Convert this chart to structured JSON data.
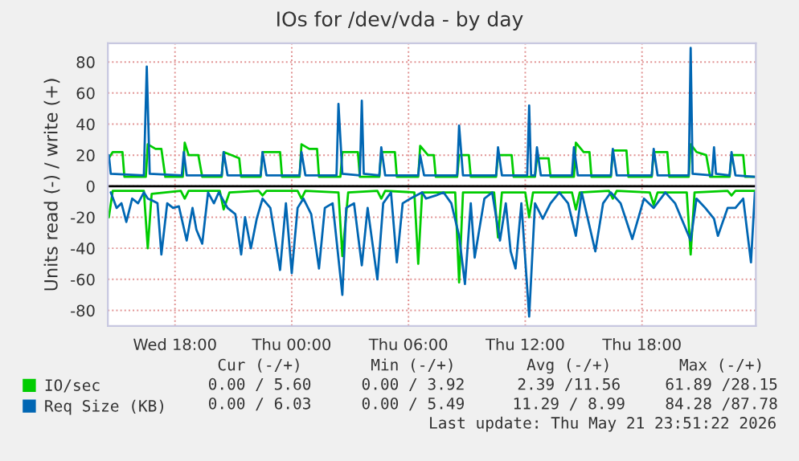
{
  "chart_data": {
    "type": "line",
    "title": "IOs for /dev/vda - by day",
    "ylabel": "Units read (-) / write (+)",
    "xlim": [
      "2026-05-20T14:33",
      "2026-05-21T23:51"
    ],
    "xticks": [
      {
        "value": "2026-05-20T18:00",
        "label": "Wed 18:00"
      },
      {
        "value": "2026-05-21T00:00",
        "label": "Thu 00:00"
      },
      {
        "value": "2026-05-21T06:00",
        "label": "Thu 06:00"
      },
      {
        "value": "2026-05-21T12:00",
        "label": "Thu 12:00"
      },
      {
        "value": "2026-05-21T18:00",
        "label": "Thu 18:00"
      }
    ],
    "ylim": [
      -90,
      92
    ],
    "yticks": [
      -80,
      -60,
      -40,
      -20,
      0,
      20,
      40,
      60,
      80
    ],
    "grid": true,
    "legend": "bottom left",
    "ref_lines": [
      {
        "axis": "y",
        "value": 0,
        "label": null,
        "color": "#000000"
      }
    ],
    "series": [
      {
        "name": "IO/sec",
        "color": "#00cc00",
        "x": [
          "2026-05-20T14:36",
          "2026-05-20T14:48",
          "2026-05-20T15:18",
          "2026-05-20T15:24",
          "2026-05-20T16:30",
          "2026-05-20T16:36",
          "2026-05-20T17:00",
          "2026-05-20T17:18",
          "2026-05-20T17:30",
          "2026-05-20T18:24",
          "2026-05-20T18:30",
          "2026-05-20T18:42",
          "2026-05-20T19:12",
          "2026-05-20T19:24",
          "2026-05-20T20:24",
          "2026-05-20T20:30",
          "2026-05-20T21:18",
          "2026-05-20T21:24",
          "2026-05-20T22:24",
          "2026-05-20T22:30",
          "2026-05-20T23:24",
          "2026-05-20T23:30",
          "2026-05-21T00:24",
          "2026-05-21T00:30",
          "2026-05-21T00:54",
          "2026-05-21T01:18",
          "2026-05-21T01:24",
          "2026-05-21T02:30",
          "2026-05-21T02:36",
          "2026-05-21T03:24",
          "2026-05-21T03:30",
          "2026-05-21T04:30",
          "2026-05-21T04:36",
          "2026-05-21T05:18",
          "2026-05-21T05:24",
          "2026-05-21T06:30",
          "2026-05-21T06:36",
          "2026-05-21T07:00",
          "2026-05-21T07:18",
          "2026-05-21T07:24",
          "2026-05-21T08:30",
          "2026-05-21T08:36",
          "2026-05-21T09:06",
          "2026-05-21T09:12",
          "2026-05-21T10:30",
          "2026-05-21T10:36",
          "2026-05-21T11:18",
          "2026-05-21T11:24",
          "2026-05-21T12:30",
          "2026-05-21T12:36",
          "2026-05-21T13:12",
          "2026-05-21T13:18",
          "2026-05-21T14:30",
          "2026-05-21T14:36",
          "2026-05-21T15:00",
          "2026-05-21T15:18",
          "2026-05-21T15:24",
          "2026-05-21T16:24",
          "2026-05-21T16:30",
          "2026-05-21T17:12",
          "2026-05-21T17:18",
          "2026-05-21T18:30",
          "2026-05-21T18:36",
          "2026-05-21T19:18",
          "2026-05-21T19:24",
          "2026-05-21T20:24",
          "2026-05-21T20:30",
          "2026-05-21T20:48",
          "2026-05-21T21:18",
          "2026-05-21T21:30",
          "2026-05-21T22:30",
          "2026-05-21T22:36",
          "2026-05-21T23:12",
          "2026-05-21T23:18",
          "2026-05-21T23:48"
        ],
        "values": [
          18,
          22,
          22,
          6,
          6,
          27,
          24,
          24,
          6,
          6,
          28,
          20,
          20,
          6,
          6,
          22,
          18,
          6,
          6,
          22,
          22,
          6,
          6,
          27,
          24,
          24,
          6,
          6,
          22,
          22,
          6,
          6,
          22,
          22,
          6,
          6,
          26,
          20,
          20,
          6,
          6,
          20,
          20,
          6,
          6,
          20,
          20,
          6,
          6,
          18,
          18,
          6,
          6,
          28,
          22,
          22,
          6,
          6,
          23,
          23,
          6,
          6,
          22,
          22,
          6,
          6,
          27,
          22,
          20,
          6,
          6,
          20,
          20,
          6,
          6
        ]
      },
      {
        "color": "#00cc00",
        "x": [
          "2026-05-20T14:36",
          "2026-05-20T14:48",
          "2026-05-20T16:24",
          "2026-05-20T16:36",
          "2026-05-20T16:48",
          "2026-05-20T18:18",
          "2026-05-20T18:30",
          "2026-05-20T18:42",
          "2026-05-20T20:18",
          "2026-05-20T20:30",
          "2026-05-20T20:48",
          "2026-05-20T22:18",
          "2026-05-20T22:30",
          "2026-05-20T22:42",
          "2026-05-21T00:18",
          "2026-05-21T00:30",
          "2026-05-21T00:42",
          "2026-05-21T02:24",
          "2026-05-21T02:36",
          "2026-05-21T02:54",
          "2026-05-21T04:24",
          "2026-05-21T04:36",
          "2026-05-21T04:48",
          "2026-05-21T06:18",
          "2026-05-21T06:30",
          "2026-05-21T06:42",
          "2026-05-21T08:24",
          "2026-05-21T08:36",
          "2026-05-21T08:48",
          "2026-05-21T10:24",
          "2026-05-21T10:36",
          "2026-05-21T10:48",
          "2026-05-21T12:00",
          "2026-05-21T12:12",
          "2026-05-21T12:24",
          "2026-05-21T14:24",
          "2026-05-21T14:36",
          "2026-05-21T14:48",
          "2026-05-21T16:18",
          "2026-05-21T16:30",
          "2026-05-21T16:42",
          "2026-05-21T18:24",
          "2026-05-21T18:36",
          "2026-05-21T18:48",
          "2026-05-21T20:18",
          "2026-05-21T20:30",
          "2026-05-21T20:42",
          "2026-05-21T22:24",
          "2026-05-21T22:36",
          "2026-05-21T22:48",
          "2026-05-21T23:48"
        ],
        "values": [
          -20,
          -3,
          -3,
          -40,
          -5,
          -3,
          -8,
          -3,
          -3,
          -15,
          -4,
          -3,
          -6,
          -3,
          -3,
          -8,
          -3,
          -4,
          -45,
          -4,
          -3,
          -8,
          -3,
          -4,
          -50,
          -4,
          -4,
          -62,
          -4,
          -4,
          -33,
          -4,
          -4,
          -20,
          -4,
          -4,
          -15,
          -4,
          -3,
          -8,
          -3,
          -4,
          -12,
          -4,
          -4,
          -44,
          -4,
          -3,
          -6,
          -3,
          -3
        ]
      },
      {
        "name": "Req Size (KB)",
        "color": "#0066b3",
        "x": [
          "2026-05-20T14:36",
          "2026-05-20T14:42",
          "2026-05-20T16:24",
          "2026-05-20T16:33",
          "2026-05-20T16:42",
          "2026-05-20T18:21",
          "2026-05-20T18:27",
          "2026-05-20T18:36",
          "2026-05-20T20:24",
          "2026-05-20T20:30",
          "2026-05-20T20:42",
          "2026-05-20T22:24",
          "2026-05-20T22:30",
          "2026-05-20T22:42",
          "2026-05-21T00:24",
          "2026-05-21T00:30",
          "2026-05-21T00:42",
          "2026-05-21T02:18",
          "2026-05-21T02:24",
          "2026-05-21T02:36",
          "2026-05-21T03:30",
          "2026-05-21T03:36",
          "2026-05-21T03:42",
          "2026-05-21T04:30",
          "2026-05-21T04:36",
          "2026-05-21T04:48",
          "2026-05-21T06:30",
          "2026-05-21T06:36",
          "2026-05-21T06:48",
          "2026-05-21T08:30",
          "2026-05-21T08:36",
          "2026-05-21T08:48",
          "2026-05-21T10:30",
          "2026-05-21T10:36",
          "2026-05-21T10:48",
          "2026-05-21T12:06",
          "2026-05-21T12:12",
          "2026-05-21T12:18",
          "2026-05-21T12:30",
          "2026-05-21T12:36",
          "2026-05-21T12:48",
          "2026-05-21T14:24",
          "2026-05-21T14:30",
          "2026-05-21T14:42",
          "2026-05-21T16:24",
          "2026-05-21T16:30",
          "2026-05-21T16:42",
          "2026-05-21T18:30",
          "2026-05-21T18:36",
          "2026-05-21T18:48",
          "2026-05-21T20:24",
          "2026-05-21T20:30",
          "2026-05-21T20:36",
          "2026-05-21T21:36",
          "2026-05-21T21:42",
          "2026-05-21T21:48",
          "2026-05-21T22:30",
          "2026-05-21T22:36",
          "2026-05-21T22:48",
          "2026-05-21T23:48"
        ],
        "values": [
          20,
          8,
          7,
          77,
          8,
          7,
          22,
          7,
          7,
          22,
          7,
          7,
          22,
          7,
          7,
          22,
          7,
          7,
          53,
          8,
          7,
          55,
          8,
          7,
          25,
          7,
          7,
          20,
          7,
          7,
          39,
          7,
          7,
          25,
          7,
          7,
          52,
          7,
          7,
          25,
          7,
          7,
          25,
          7,
          7,
          24,
          7,
          7,
          24,
          7,
          7,
          89,
          8,
          7,
          25,
          8,
          7,
          22,
          7,
          6
        ]
      },
      {
        "color": "#0066b3",
        "x": [
          "2026-05-20T14:42",
          "2026-05-20T15:00",
          "2026-05-20T15:15",
          "2026-05-20T15:30",
          "2026-05-20T15:48",
          "2026-05-20T16:06",
          "2026-05-20T16:24",
          "2026-05-20T16:36",
          "2026-05-20T16:48",
          "2026-05-20T17:06",
          "2026-05-20T17:18",
          "2026-05-20T17:36",
          "2026-05-20T17:54",
          "2026-05-20T18:12",
          "2026-05-20T18:36",
          "2026-05-20T18:54",
          "2026-05-20T19:06",
          "2026-05-20T19:24",
          "2026-05-20T19:42",
          "2026-05-20T20:00",
          "2026-05-20T20:15",
          "2026-05-20T20:42",
          "2026-05-20T21:06",
          "2026-05-20T21:24",
          "2026-05-20T21:36",
          "2026-05-20T21:54",
          "2026-05-20T22:12",
          "2026-05-20T22:30",
          "2026-05-20T22:54",
          "2026-05-20T23:24",
          "2026-05-20T23:42",
          "2026-05-21T00:00",
          "2026-05-21T00:18",
          "2026-05-21T00:36",
          "2026-05-21T01:00",
          "2026-05-21T01:24",
          "2026-05-21T01:42",
          "2026-05-21T02:06",
          "2026-05-21T02:36",
          "2026-05-21T02:48",
          "2026-05-21T03:12",
          "2026-05-21T03:36",
          "2026-05-21T03:54",
          "2026-05-21T04:24",
          "2026-05-21T04:42",
          "2026-05-21T05:06",
          "2026-05-21T05:24",
          "2026-05-21T05:42",
          "2026-05-21T06:06",
          "2026-05-21T06:42",
          "2026-05-21T06:54",
          "2026-05-21T07:24",
          "2026-05-21T07:48",
          "2026-05-21T08:12",
          "2026-05-21T08:36",
          "2026-05-21T08:54",
          "2026-05-21T09:12",
          "2026-05-21T09:24",
          "2026-05-21T09:54",
          "2026-05-21T10:18",
          "2026-05-21T10:42",
          "2026-05-21T11:00",
          "2026-05-21T11:15",
          "2026-05-21T11:30",
          "2026-05-21T11:48",
          "2026-05-21T12:12",
          "2026-05-21T12:30",
          "2026-05-21T12:54",
          "2026-05-21T13:18",
          "2026-05-21T13:45",
          "2026-05-21T14:12",
          "2026-05-21T14:36",
          "2026-05-21T14:54",
          "2026-05-21T15:36",
          "2026-05-21T16:00",
          "2026-05-21T16:24",
          "2026-05-21T16:54",
          "2026-05-21T17:30",
          "2026-05-21T18:06",
          "2026-05-21T18:36",
          "2026-05-21T19:12",
          "2026-05-21T19:42",
          "2026-05-21T20:30",
          "2026-05-21T20:48",
          "2026-05-21T21:15",
          "2026-05-21T21:42",
          "2026-05-21T21:54",
          "2026-05-21T22:24",
          "2026-05-21T22:48",
          "2026-05-21T23:12",
          "2026-05-21T23:36",
          "2026-05-21T23:48"
        ],
        "values": [
          -4,
          -14,
          -11,
          -23,
          -8,
          -11,
          -4,
          -8,
          -9,
          -11,
          -44,
          -11,
          -14,
          -13,
          -35,
          -14,
          -28,
          -37,
          -4,
          -11,
          -4,
          -14,
          -18,
          -44,
          -20,
          -40,
          -21,
          -8,
          -14,
          -54,
          -11,
          -56,
          -14,
          -8,
          -18,
          -53,
          -14,
          -11,
          -70,
          -14,
          -11,
          -51,
          -14,
          -60,
          -11,
          -4,
          -49,
          -11,
          -8,
          -4,
          -8,
          -6,
          -4,
          -11,
          -32,
          -63,
          -11,
          -46,
          -8,
          -4,
          -35,
          -11,
          -42,
          -53,
          -11,
          -84,
          -11,
          -21,
          -11,
          -4,
          -11,
          -32,
          -4,
          -42,
          -11,
          -4,
          -11,
          -34,
          -8,
          -14,
          -4,
          -11,
          -35,
          -8,
          -14,
          -21,
          -32,
          -14,
          -14,
          -8,
          -49,
          -4
        ]
      }
    ],
    "annotations": [
      "Cur (-/+)",
      "Min (-/+)",
      "Avg (-/+)",
      "Max (-/+)",
      "0.00 / 5.60",
      "0.00 / 3.92",
      "2.39 /11.56",
      "61.89 /28.15",
      "0.00 / 6.03",
      "0.00 / 5.49",
      "11.29 / 8.99",
      "84.28 /87.78",
      "Last update: Thu May 21 23:51:22 2026"
    ]
  }
}
